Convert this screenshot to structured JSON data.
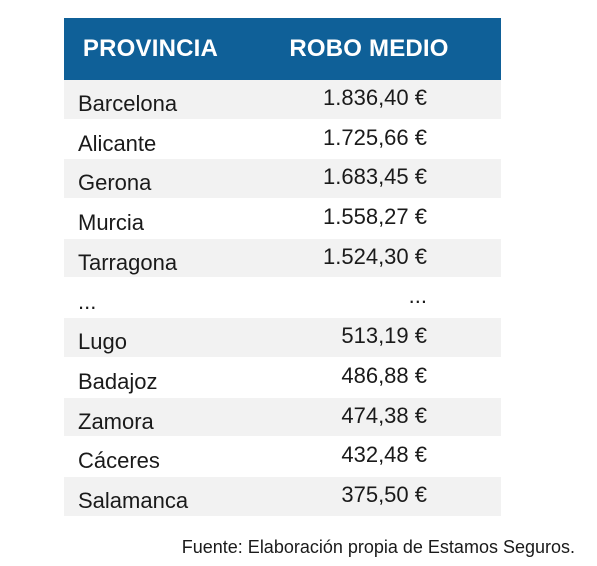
{
  "table": {
    "headers": {
      "provincia": "PROVINCIA",
      "robo_medio": "ROBO MEDIO"
    },
    "rows": [
      {
        "provincia": "Barcelona",
        "robo_medio": "1.836,40 €"
      },
      {
        "provincia": "Alicante",
        "robo_medio": "1.725,66 €"
      },
      {
        "provincia": "Gerona",
        "robo_medio": "1.683,45 €"
      },
      {
        "provincia": "Murcia",
        "robo_medio": "1.558,27 €"
      },
      {
        "provincia": "Tarragona",
        "robo_medio": "1.524,30 €"
      },
      {
        "provincia": "...",
        "robo_medio": "..."
      },
      {
        "provincia": "Lugo",
        "robo_medio": "513,19 €"
      },
      {
        "provincia": "Badajoz",
        "robo_medio": "486,88 €"
      },
      {
        "provincia": "Zamora",
        "robo_medio": "474,38 €"
      },
      {
        "provincia": "Cáceres",
        "robo_medio": "432,48 €"
      },
      {
        "provincia": "Salamanca",
        "robo_medio": "375,50 €"
      }
    ]
  },
  "source": "Fuente: Elaboración propia de Estamos Seguros.",
  "colors": {
    "header_bg": "#0f6098",
    "stripe_bg": "#f2f2f2"
  }
}
